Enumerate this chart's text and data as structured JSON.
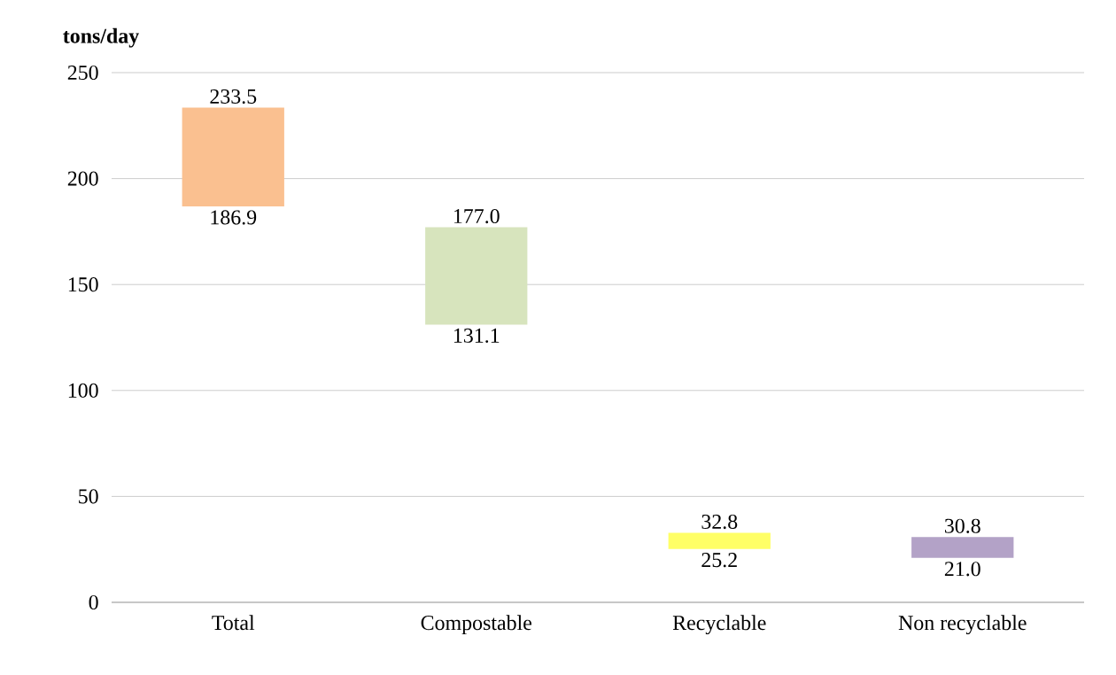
{
  "chart_data": {
    "type": "bar",
    "ylabel": "tons/day",
    "categories": [
      "Total",
      "Compostable",
      "Recyclable",
      "Non recyclable"
    ],
    "base": [
      186.9,
      131.1,
      25.2,
      21.0
    ],
    "values": [
      46.6,
      45.9,
      7.6,
      9.8
    ],
    "colors": [
      "#fac090",
      "#d7e4bd",
      "#ffff66",
      "#b3a2c7"
    ],
    "ylim": [
      0,
      250
    ],
    "yticks": [
      0,
      50,
      100,
      150,
      200,
      250
    ],
    "grid": "y",
    "annotations": [
      "233.5",
      "186.9",
      "177.0",
      "131.1",
      "32.8",
      "25.2",
      "30.8",
      "21.0"
    ]
  }
}
